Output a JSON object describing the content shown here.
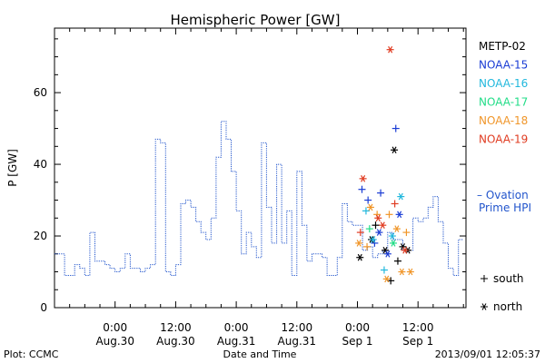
{
  "chart_data": {
    "type": "line",
    "title": "Hemispheric Power [GW]",
    "xlabel": "Date and Time",
    "ylabel": "P [GW]",
    "ylim": [
      0,
      78
    ],
    "xlim_hours": [
      0,
      81.5
    ],
    "y_ticks": [
      0,
      20,
      40,
      60
    ],
    "x_ticks": [
      {
        "hour": 12,
        "line1": "0:00",
        "line2": "Aug.30"
      },
      {
        "hour": 24,
        "line1": "12:00",
        "line2": "Aug.30"
      },
      {
        "hour": 36,
        "line1": "0:00",
        "line2": "Aug.31"
      },
      {
        "hour": 48,
        "line1": "12:00",
        "line2": "Aug.31"
      },
      {
        "hour": 60,
        "line1": "0:00",
        "line2": "Sep 1"
      },
      {
        "hour": 72,
        "line1": "12:00",
        "line2": "Sep 1"
      }
    ],
    "ovation": {
      "name": "Ovation Prime HPI",
      "color": "#2255cc",
      "step_hours": 1,
      "start_hour": 0,
      "values": [
        15,
        15,
        9,
        9,
        12,
        11,
        9,
        21,
        13,
        13,
        12,
        11,
        10,
        11,
        15,
        11,
        11,
        10,
        11,
        12,
        47,
        46,
        10,
        9,
        12,
        29,
        30,
        28,
        24,
        21,
        19,
        25,
        42,
        52,
        47,
        38,
        27,
        15,
        21,
        17,
        14,
        46,
        28,
        18,
        40,
        18,
        27,
        9,
        38,
        23,
        13,
        15,
        15,
        14,
        9,
        9,
        14,
        29,
        24,
        23,
        23,
        16,
        17,
        14,
        15,
        16,
        21,
        19,
        19,
        16,
        16,
        25,
        24,
        25,
        28,
        31,
        24,
        18,
        11,
        9,
        19
      ]
    },
    "satellites": [
      {
        "name": "METP-02",
        "color": "#000000"
      },
      {
        "name": "NOAA-15",
        "color": "#1a3cd4"
      },
      {
        "name": "NOAA-16",
        "color": "#22b8dd"
      },
      {
        "name": "NOAA-17",
        "color": "#22dd88"
      },
      {
        "name": "NOAA-18",
        "color": "#f0962a"
      },
      {
        "name": "NOAA-19",
        "color": "#e03c22"
      }
    ],
    "markers": [
      {
        "sat": "METP-02",
        "kind": "north",
        "x": 60.5,
        "y": 14
      },
      {
        "sat": "METP-02",
        "kind": "north",
        "x": 62.8,
        "y": 19
      },
      {
        "sat": "METP-02",
        "kind": "south",
        "x": 63.6,
        "y": 23
      },
      {
        "sat": "METP-02",
        "kind": "north",
        "x": 65.5,
        "y": 16
      },
      {
        "sat": "METP-02",
        "kind": "south",
        "x": 66.6,
        "y": 7.5
      },
      {
        "sat": "METP-02",
        "kind": "north",
        "x": 67.3,
        "y": 44
      },
      {
        "sat": "METP-02",
        "kind": "south",
        "x": 68.0,
        "y": 13
      },
      {
        "sat": "METP-02",
        "kind": "north",
        "x": 69.0,
        "y": 17
      },
      {
        "sat": "METP-02",
        "kind": "north",
        "x": 70.0,
        "y": 16
      },
      {
        "sat": "NOAA-15",
        "kind": "south",
        "x": 60.9,
        "y": 33
      },
      {
        "sat": "NOAA-15",
        "kind": "south",
        "x": 62.1,
        "y": 30
      },
      {
        "sat": "NOAA-15",
        "kind": "south",
        "x": 63.4,
        "y": 18
      },
      {
        "sat": "NOAA-15",
        "kind": "north",
        "x": 64.3,
        "y": 21
      },
      {
        "sat": "NOAA-15",
        "kind": "south",
        "x": 64.6,
        "y": 32
      },
      {
        "sat": "NOAA-15",
        "kind": "north",
        "x": 66.0,
        "y": 15
      },
      {
        "sat": "NOAA-15",
        "kind": "south",
        "x": 67.6,
        "y": 50
      },
      {
        "sat": "NOAA-15",
        "kind": "north",
        "x": 68.3,
        "y": 26
      },
      {
        "sat": "NOAA-16",
        "kind": "south",
        "x": 61.7,
        "y": 27
      },
      {
        "sat": "NOAA-16",
        "kind": "north",
        "x": 63.1,
        "y": 19
      },
      {
        "sat": "NOAA-16",
        "kind": "south",
        "x": 65.3,
        "y": 10.5
      },
      {
        "sat": "NOAA-16",
        "kind": "north",
        "x": 66.9,
        "y": 20
      },
      {
        "sat": "NOAA-16",
        "kind": "north",
        "x": 68.6,
        "y": 31
      },
      {
        "sat": "NOAA-17",
        "kind": "south",
        "x": 62.4,
        "y": 22
      },
      {
        "sat": "NOAA-17",
        "kind": "north",
        "x": 67.1,
        "y": 18
      },
      {
        "sat": "NOAA-18",
        "kind": "north",
        "x": 60.3,
        "y": 18
      },
      {
        "sat": "NOAA-18",
        "kind": "south",
        "x": 61.9,
        "y": 17
      },
      {
        "sat": "NOAA-18",
        "kind": "north",
        "x": 62.6,
        "y": 28
      },
      {
        "sat": "NOAA-18",
        "kind": "south",
        "x": 63.9,
        "y": 26
      },
      {
        "sat": "NOAA-18",
        "kind": "north",
        "x": 65.8,
        "y": 8
      },
      {
        "sat": "NOAA-18",
        "kind": "south",
        "x": 66.3,
        "y": 26
      },
      {
        "sat": "NOAA-18",
        "kind": "north",
        "x": 67.8,
        "y": 22
      },
      {
        "sat": "NOAA-18",
        "kind": "north",
        "x": 68.8,
        "y": 10
      },
      {
        "sat": "NOAA-18",
        "kind": "south",
        "x": 69.7,
        "y": 21
      },
      {
        "sat": "NOAA-18",
        "kind": "north",
        "x": 70.5,
        "y": 10
      },
      {
        "sat": "NOAA-19",
        "kind": "north",
        "x": 61.1,
        "y": 36
      },
      {
        "sat": "NOAA-19",
        "kind": "south",
        "x": 60.6,
        "y": 21
      },
      {
        "sat": "NOAA-19",
        "kind": "north",
        "x": 64.1,
        "y": 25
      },
      {
        "sat": "NOAA-19",
        "kind": "north",
        "x": 65.0,
        "y": 23
      },
      {
        "sat": "NOAA-19",
        "kind": "north",
        "x": 66.5,
        "y": 72
      },
      {
        "sat": "NOAA-19",
        "kind": "south",
        "x": 67.4,
        "y": 29
      },
      {
        "sat": "NOAA-19",
        "kind": "north",
        "x": 69.4,
        "y": 16
      }
    ],
    "marker_key": {
      "south_label": "south",
      "north_label": "north"
    }
  },
  "footer": {
    "plot_source": "Plot: CCMC",
    "timestamp": "2013/09/01 12:05:37"
  },
  "legend_labels": {
    "ovation_line1": "– Ovation",
    "ovation_line2": "Prime HPI"
  }
}
